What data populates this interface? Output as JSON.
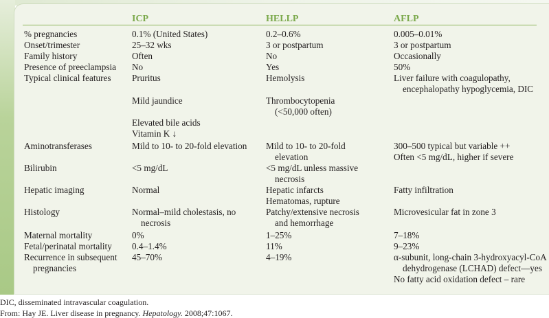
{
  "colors": {
    "header": "#7aa84a",
    "panel": "#f1f4ea",
    "rule": "#8cb45a"
  },
  "headers": [
    "ICP",
    "HELLP",
    "AFLP"
  ],
  "rows": [
    {
      "label": [
        [
          "% pregnancies"
        ]
      ],
      "icp": [
        [
          "0.1% (United States)"
        ]
      ],
      "hellp": [
        [
          "0.2–0.6%"
        ]
      ],
      "aflp": [
        [
          "0.005–0.01%"
        ]
      ]
    },
    {
      "label": [
        [
          "Onset/trimester"
        ]
      ],
      "icp": [
        [
          "25–32 wks"
        ]
      ],
      "hellp": [
        [
          "3 or postpartum"
        ]
      ],
      "aflp": [
        [
          "3 or postpartum"
        ]
      ]
    },
    {
      "label": [
        [
          "Family history"
        ]
      ],
      "icp": [
        [
          "Often"
        ]
      ],
      "hellp": [
        [
          "No"
        ]
      ],
      "aflp": [
        [
          "Occasionally"
        ]
      ]
    },
    {
      "label": [
        [
          "Presence of preeclampsia"
        ]
      ],
      "icp": [
        [
          "No"
        ]
      ],
      "hellp": [
        [
          "Yes"
        ]
      ],
      "aflp": [
        [
          "50%"
        ]
      ]
    },
    {
      "label": [
        [
          "Typical clinical features"
        ]
      ],
      "icp": [
        [
          "Pruritus"
        ]
      ],
      "hellp": [
        [
          "Hemolysis"
        ]
      ],
      "aflp": [
        [
          "Liver failure with coagulopathy,",
          "encephalopathy hypoglycemia, DIC"
        ]
      ]
    },
    {
      "label": [],
      "icp": [
        [
          "Mild jaundice"
        ]
      ],
      "hellp": [
        [
          "Thrombocytopenia",
          "(<50,000 often)"
        ]
      ],
      "aflp": []
    },
    {
      "label": [],
      "icp": [
        [
          "Elevated bile acids"
        ],
        [
          "Vitamin K ↓"
        ]
      ],
      "hellp": [],
      "aflp": []
    },
    {
      "label": [
        [
          "Aminotransferases"
        ]
      ],
      "icp": [
        [
          "Mild to 10- to 20-fold elevation"
        ]
      ],
      "hellp": [
        [
          "Mild to 10- to 20-fold",
          "elevation"
        ]
      ],
      "aflp": [
        [
          "300–500 typical but variable ++"
        ],
        [
          "Often <5 mg/dL, higher if severe"
        ]
      ]
    },
    {
      "label": [
        [
          "Bilirubin"
        ]
      ],
      "icp": [
        [
          "<5 mg/dL"
        ]
      ],
      "hellp": [
        [
          "<5 mg/dL unless massive",
          "necrosis"
        ]
      ],
      "aflp": []
    },
    {
      "label": [
        [
          "Hepatic imaging"
        ]
      ],
      "icp": [
        [
          "Normal"
        ]
      ],
      "hellp": [
        [
          "Hepatic infarcts"
        ],
        [
          "Hematomas, rupture"
        ]
      ],
      "aflp": [
        [
          "Fatty infiltration"
        ]
      ]
    },
    {
      "label": [
        [
          "Histology"
        ]
      ],
      "icp": [
        [
          "Normal–mild cholestasis, no",
          "necrosis"
        ]
      ],
      "hellp": [
        [
          "Patchy/extensive necrosis",
          "and hemorrhage"
        ]
      ],
      "aflp": [
        [
          "Microvesicular fat in zone 3"
        ]
      ]
    },
    {
      "label": [
        [
          "Maternal mortality"
        ]
      ],
      "icp": [
        [
          "0%"
        ]
      ],
      "hellp": [
        [
          "1–25%"
        ]
      ],
      "aflp": [
        [
          "7–18%"
        ]
      ]
    },
    {
      "label": [
        [
          "Fetal/perinatal mortality"
        ]
      ],
      "icp": [
        [
          "0.4–1.4%"
        ]
      ],
      "hellp": [
        [
          "11%"
        ]
      ],
      "aflp": [
        [
          "9–23%"
        ]
      ]
    },
    {
      "label": [
        [
          "Recurrence in subsequent",
          "pregnancies"
        ]
      ],
      "icp": [
        [
          "45–70%"
        ]
      ],
      "hellp": [
        [
          "4–19%"
        ]
      ],
      "aflp": [
        [
          "α-subunit, long-chain 3-hydroxyacyl-CoA",
          "dehydrogenase (LCHAD) defect—yes"
        ],
        [
          "No fatty acid oxidation defect – rare"
        ]
      ]
    }
  ],
  "footnotes": {
    "abbrev": "DIC, disseminated intravascular coagulation.",
    "source_pre": "From: Hay JE. Liver disease in pregnancy. ",
    "source_journal": "Hepatology.",
    "source_post": " 2008;47:1067."
  }
}
